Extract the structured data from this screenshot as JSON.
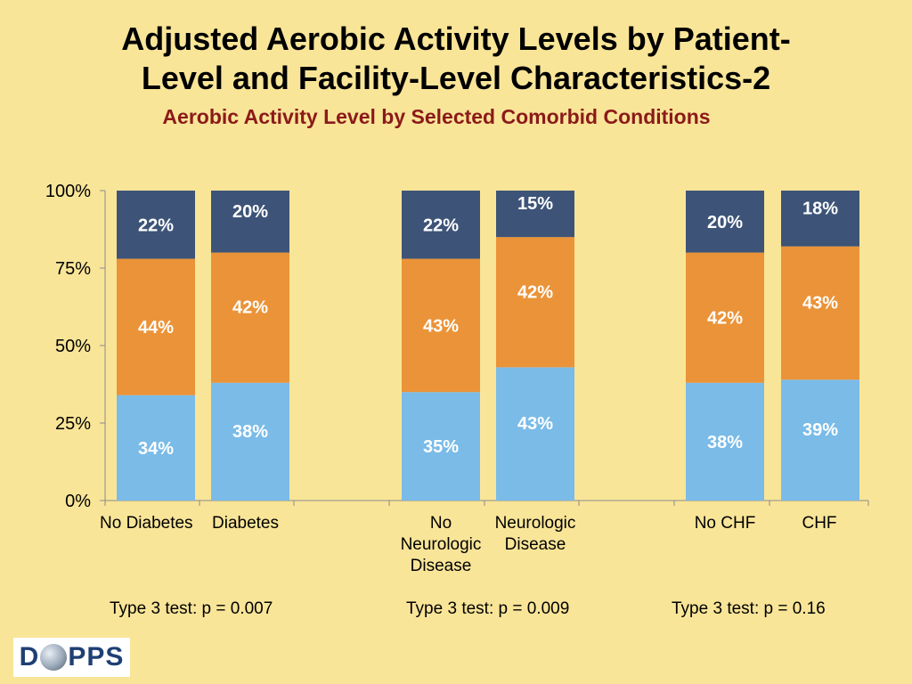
{
  "title": "Adjusted Aerobic Activity Levels by Patient-Level and Facility-Level Characteristics-2",
  "title_line1": "Adjusted Aerobic Activity Levels by Patient-",
  "title_line2": "Level and Facility-Level Characteristics-2",
  "subtitle": "Aerobic Activity Level by Selected Comorbid Conditions",
  "colors": {
    "bottom": "#7abbe8",
    "middle": "#eb9338",
    "top": "#3d5478",
    "background": "#f9e598"
  },
  "chart_data": {
    "type": "bar",
    "stacked": true,
    "y_ticks": [
      "0%",
      "25%",
      "50%",
      "75%",
      "100%"
    ],
    "ylim": [
      0,
      100
    ],
    "categories": [
      "No Diabetes",
      "Diabetes",
      "No Neurologic Disease",
      "Neurologic Disease",
      "No CHF",
      "CHF"
    ],
    "category_labels": [
      [
        "No Diabetes"
      ],
      [
        "Diabetes"
      ],
      [
        "No",
        "Neurologic",
        "Disease"
      ],
      [
        "Neurologic",
        "Disease"
      ],
      [
        "No CHF"
      ],
      [
        "CHF"
      ]
    ],
    "series": [
      {
        "values": [
          34,
          38,
          35,
          43,
          38,
          39
        ],
        "labels": [
          "34%",
          "38%",
          "35%",
          "43%",
          "38%",
          "39%"
        ]
      },
      {
        "values": [
          44,
          42,
          43,
          42,
          42,
          43
        ],
        "labels": [
          "44%",
          "42%",
          "43%",
          "42%",
          "42%",
          "43%"
        ]
      },
      {
        "values": [
          22,
          20,
          22,
          15,
          20,
          18
        ],
        "labels": [
          "22%",
          "20%",
          "22%",
          "15%",
          "20%",
          "18%"
        ]
      }
    ],
    "grid": false,
    "legend": "none"
  },
  "tests": [
    "Type 3 test: p = 0.007",
    "Type 3 test: p = 0.009",
    "Type 3 test: p = 0.16"
  ],
  "logo": {
    "letter_d": "D",
    "letters_pps": "PPS",
    "text": "DOPPS"
  }
}
